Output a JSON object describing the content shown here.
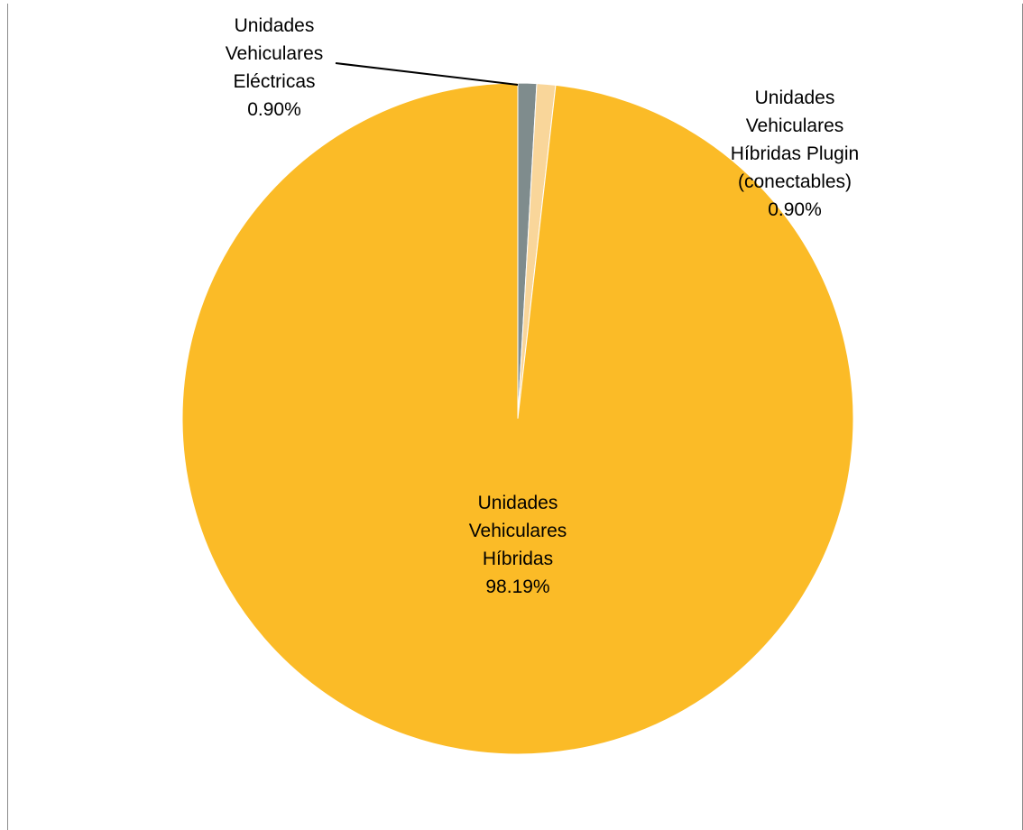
{
  "chart_data": {
    "type": "pie",
    "slices": [
      {
        "label_lines": [
          "Unidades",
          "Vehiculares",
          "Eléctricas"
        ],
        "value": 0.9,
        "value_label": "0.90%",
        "color": "#7f8c8d"
      },
      {
        "label_lines": [
          "Unidades",
          "Vehiculares",
          "Híbridas Plugin",
          "(conectables)"
        ],
        "value": 0.9,
        "value_label": "0.90%",
        "color": "#f9d69a"
      },
      {
        "label_lines": [
          "Unidades",
          "Vehiculares",
          "Híbridas"
        ],
        "value": 98.19,
        "value_label": "98.19%",
        "color": "#fbbb27"
      }
    ],
    "start_angle_deg": 0,
    "direction": "clockwise",
    "legend": "none",
    "labels_on_chart": true
  }
}
